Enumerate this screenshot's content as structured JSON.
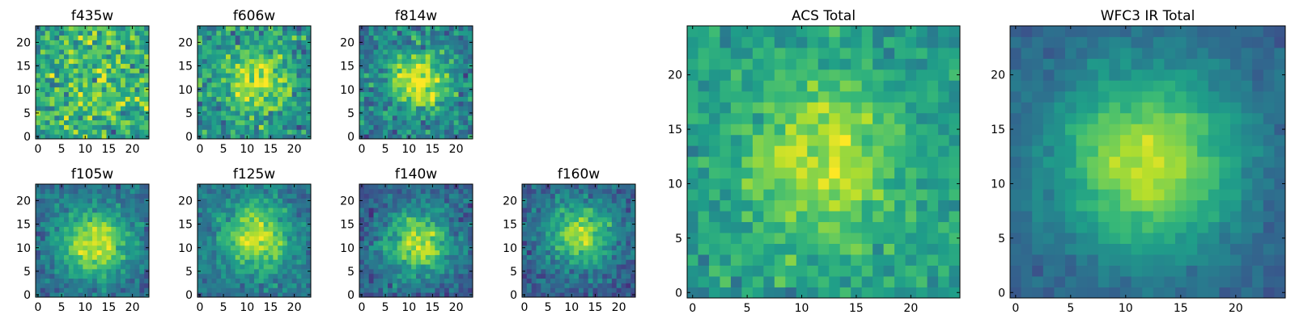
{
  "figure": {
    "colormap": "viridis",
    "axis_color": "#000000",
    "background": "#ffffff"
  },
  "chart_data": [
    {
      "type": "heatmap",
      "title": "f435w",
      "grid_size": 24,
      "xlim": [
        0,
        24
      ],
      "ylim": [
        0,
        24
      ],
      "x_ticks": [
        0,
        5,
        10,
        15,
        20
      ],
      "y_ticks": [
        0,
        5,
        10,
        15,
        20
      ],
      "xlabel": "",
      "ylabel": "",
      "pattern": {
        "peak_x": 12,
        "peak_y": 12,
        "sigma": 10,
        "peak_strength": 0.15,
        "noise": 0.9,
        "baseline": 0.55,
        "seed": 11
      }
    },
    {
      "type": "heatmap",
      "title": "f606w",
      "grid_size": 24,
      "xlim": [
        0,
        24
      ],
      "ylim": [
        0,
        24
      ],
      "x_ticks": [
        0,
        5,
        10,
        15,
        20
      ],
      "y_ticks": [
        0,
        5,
        10,
        15,
        20
      ],
      "xlabel": "",
      "ylabel": "",
      "pattern": {
        "peak_x": 12,
        "peak_y": 12,
        "sigma": 5,
        "peak_strength": 0.4,
        "noise": 0.75,
        "baseline": 0.5,
        "seed": 23
      }
    },
    {
      "type": "heatmap",
      "title": "f814w",
      "grid_size": 24,
      "xlim": [
        0,
        24
      ],
      "ylim": [
        0,
        24
      ],
      "x_ticks": [
        0,
        5,
        10,
        15,
        20
      ],
      "y_ticks": [
        0,
        5,
        10,
        15,
        20
      ],
      "xlabel": "",
      "ylabel": "",
      "pattern": {
        "peak_x": 12,
        "peak_y": 12,
        "sigma": 4.5,
        "peak_strength": 0.55,
        "noise": 0.7,
        "baseline": 0.42,
        "seed": 37
      }
    },
    {
      "type": "heatmap",
      "title": "f105w",
      "grid_size": 24,
      "xlim": [
        0,
        24
      ],
      "ylim": [
        0,
        24
      ],
      "x_ticks": [
        0,
        5,
        10,
        15,
        20
      ],
      "y_ticks": [
        0,
        5,
        10,
        15,
        20
      ],
      "xlabel": "",
      "ylabel": "",
      "pattern": {
        "peak_x": 12,
        "peak_y": 11,
        "sigma": 5,
        "peak_strength": 0.6,
        "noise": 0.45,
        "baseline": 0.35,
        "seed": 41
      }
    },
    {
      "type": "heatmap",
      "title": "f125w",
      "grid_size": 24,
      "xlim": [
        0,
        24
      ],
      "ylim": [
        0,
        24
      ],
      "x_ticks": [
        0,
        5,
        10,
        15,
        20
      ],
      "y_ticks": [
        0,
        5,
        10,
        15,
        20
      ],
      "xlabel": "",
      "ylabel": "",
      "pattern": {
        "peak_x": 12,
        "peak_y": 12,
        "sigma": 5,
        "peak_strength": 0.55,
        "noise": 0.45,
        "baseline": 0.38,
        "seed": 53
      }
    },
    {
      "type": "heatmap",
      "title": "f140w",
      "grid_size": 24,
      "xlim": [
        0,
        24
      ],
      "ylim": [
        0,
        24
      ],
      "x_ticks": [
        0,
        5,
        10,
        15,
        20
      ],
      "y_ticks": [
        0,
        5,
        10,
        15,
        20
      ],
      "xlabel": "",
      "ylabel": "",
      "pattern": {
        "peak_x": 12,
        "peak_y": 11,
        "sigma": 5,
        "peak_strength": 0.6,
        "noise": 0.5,
        "baseline": 0.3,
        "seed": 67
      }
    },
    {
      "type": "heatmap",
      "title": "f160w",
      "grid_size": 24,
      "xlim": [
        0,
        24
      ],
      "ylim": [
        0,
        24
      ],
      "x_ticks": [
        0,
        5,
        10,
        15,
        20
      ],
      "y_ticks": [
        0,
        5,
        10,
        15,
        20
      ],
      "xlabel": "",
      "ylabel": "",
      "pattern": {
        "peak_x": 12,
        "peak_y": 13,
        "sigma": 5,
        "peak_strength": 0.55,
        "noise": 0.5,
        "baseline": 0.3,
        "seed": 79
      }
    },
    {
      "type": "heatmap",
      "title": "ACS Total",
      "grid_size": 25,
      "xlim": [
        0,
        25
      ],
      "ylim": [
        0,
        25
      ],
      "x_ticks": [
        0,
        5,
        10,
        15,
        20
      ],
      "y_ticks": [
        0,
        5,
        10,
        15,
        20
      ],
      "xlabel": "",
      "ylabel": "",
      "pattern": {
        "peak_x": 12,
        "peak_y": 12,
        "sigma": 5,
        "peak_strength": 0.35,
        "noise": 0.45,
        "baseline": 0.55,
        "seed": 97
      }
    },
    {
      "type": "heatmap",
      "title": "WFC3 IR Total",
      "grid_size": 25,
      "xlim": [
        0,
        25
      ],
      "ylim": [
        0,
        25
      ],
      "x_ticks": [
        0,
        5,
        10,
        15,
        20
      ],
      "y_ticks": [
        0,
        5,
        10,
        15,
        20
      ],
      "xlabel": "",
      "ylabel": "",
      "pattern": {
        "peak_x": 12,
        "peak_y": 12,
        "sigma": 6,
        "peak_strength": 0.6,
        "noise": 0.22,
        "baseline": 0.3,
        "seed": 131
      }
    }
  ]
}
